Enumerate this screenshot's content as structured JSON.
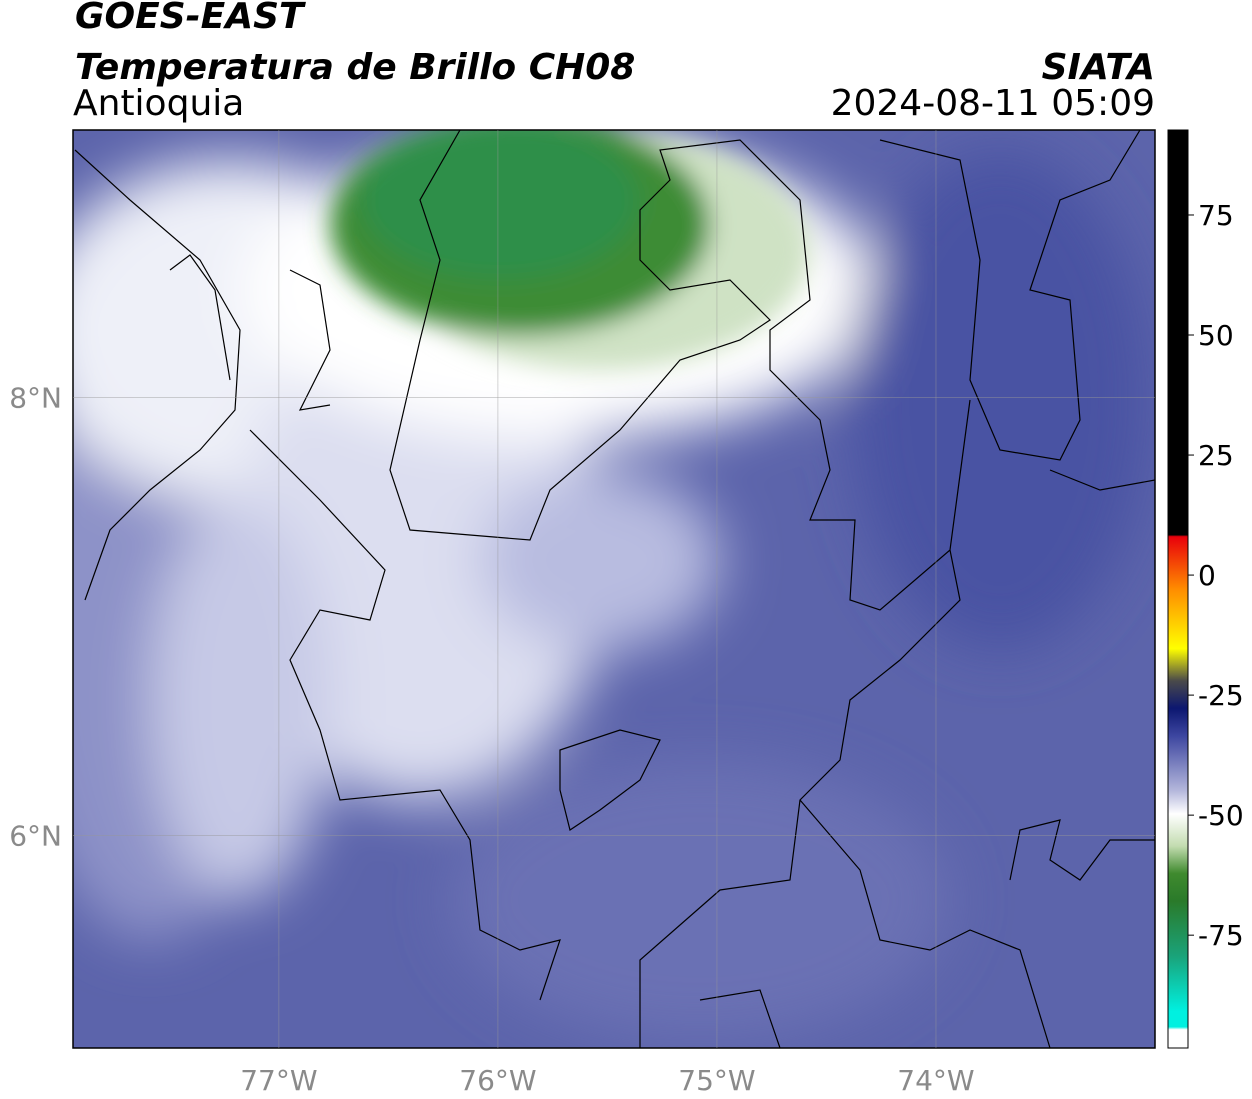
{
  "header": {
    "title": "GOES-EAST",
    "subtitle": "Temperatura de Brillo CH08",
    "region": "Antioquia",
    "source": "SIATA",
    "datetime": "2024-08-11 05:09"
  },
  "map": {
    "xlim": [
      -77.94,
      -73.0
    ],
    "ylim": [
      5.03,
      9.22
    ],
    "xticks": [
      {
        "value": -77,
        "label": "77°W"
      },
      {
        "value": -76,
        "label": "76°W"
      },
      {
        "value": -75,
        "label": "75°W"
      },
      {
        "value": -74,
        "label": "74°W"
      }
    ],
    "yticks": [
      {
        "value": 8,
        "label": "8°N"
      },
      {
        "value": 6,
        "label": "6°N"
      }
    ],
    "grid": true
  },
  "colorbar": {
    "range": [
      -98.5,
      92.7
    ],
    "ticks": [
      75,
      50,
      25,
      0,
      -25,
      -50,
      -75
    ]
  }
}
